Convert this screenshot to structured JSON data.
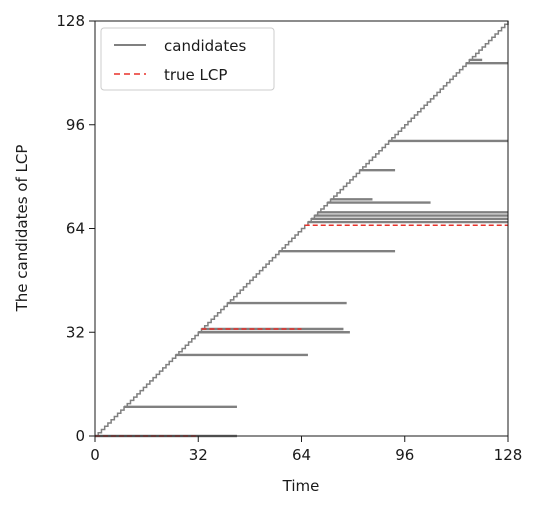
{
  "chart_data": {
    "type": "line",
    "xlabel": "Time",
    "ylabel": "The candidates of LCP",
    "xlim": [
      0,
      128
    ],
    "ylim": [
      0,
      128
    ],
    "xticks": [
      0,
      32,
      64,
      96,
      128
    ],
    "yticks": [
      0,
      32,
      64,
      96,
      128
    ],
    "grid": false,
    "legend_position": "top-left",
    "legend": [
      {
        "label": "candidates",
        "style": "solid",
        "color": "#808080"
      },
      {
        "label": "true LCP",
        "style": "dashed",
        "color": "#e8312a"
      }
    ],
    "series": [
      {
        "name": "candidates",
        "color": "#808080",
        "diagonal": {
          "from": 0,
          "to": 128
        },
        "segments": [
          {
            "y": 0,
            "x_start": 0,
            "x_end": 44
          },
          {
            "y": 9,
            "x_start": 9,
            "x_end": 44
          },
          {
            "y": 25,
            "x_start": 25,
            "x_end": 66
          },
          {
            "y": 32,
            "x_start": 32,
            "x_end": 79
          },
          {
            "y": 33,
            "x_start": 33,
            "x_end": 77
          },
          {
            "y": 41,
            "x_start": 41,
            "x_end": 78
          },
          {
            "y": 57,
            "x_start": 57,
            "x_end": 93
          },
          {
            "y": 66,
            "x_start": 66,
            "x_end": 128
          },
          {
            "y": 67,
            "x_start": 67,
            "x_end": 128
          },
          {
            "y": 68,
            "x_start": 68,
            "x_end": 128
          },
          {
            "y": 69,
            "x_start": 69,
            "x_end": 128
          },
          {
            "y": 72,
            "x_start": 72,
            "x_end": 104
          },
          {
            "y": 73,
            "x_start": 73,
            "x_end": 86
          },
          {
            "y": 82,
            "x_start": 82,
            "x_end": 93
          },
          {
            "y": 91,
            "x_start": 91,
            "x_end": 128
          },
          {
            "y": 115,
            "x_start": 115,
            "x_end": 128
          },
          {
            "y": 116,
            "x_start": 116,
            "x_end": 120
          }
        ]
      },
      {
        "name": "true LCP",
        "color": "#e8312a",
        "dashed": true,
        "segments": [
          {
            "y": 0,
            "x_start": 0,
            "x_end": 32
          },
          {
            "y": 33,
            "x_start": 33,
            "x_end": 64
          },
          {
            "y": 65,
            "x_start": 65,
            "x_end": 128
          }
        ]
      }
    ]
  }
}
